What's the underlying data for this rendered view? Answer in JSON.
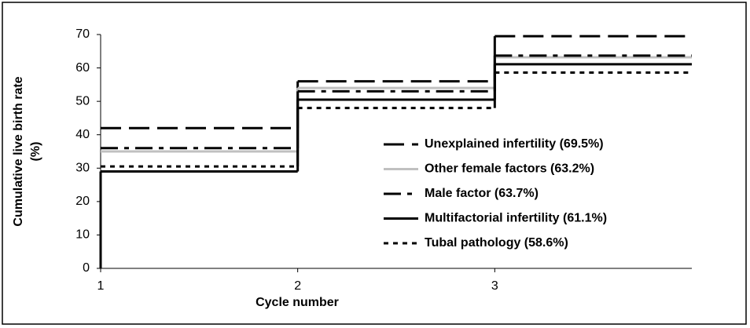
{
  "chart_data": {
    "type": "step",
    "y_label": [
      "Cumulative live birth rate",
      "(%)"
    ],
    "x_label": "Cycle number",
    "x": [
      1,
      2,
      3
    ],
    "xlim": [
      1,
      4
    ],
    "xticks": [
      1,
      2,
      3
    ],
    "ylim": [
      0,
      70
    ],
    "yticks": [
      0,
      10,
      20,
      30,
      40,
      50,
      60,
      70
    ],
    "series": [
      {
        "name": "Unexplained infertility (69.5%)",
        "color": "#000000",
        "dash": "26,10",
        "values": [
          42,
          56,
          69.5
        ]
      },
      {
        "name": "Other female factors (63.2%)",
        "color": "#c0c0c0",
        "dash": "none",
        "values": [
          35,
          54,
          63.2
        ]
      },
      {
        "name": "Male factor (63.7%)",
        "color": "#000000",
        "dash": "22,8,6,8",
        "values": [
          36,
          53,
          63.7
        ]
      },
      {
        "name": "Multifactorial infertility (61.1%)",
        "color": "#000000",
        "dash": "none",
        "values": [
          29,
          50.5,
          61.1
        ]
      },
      {
        "name": "Tubal pathology (58.6%)",
        "color": "#000000",
        "dash": "6,6",
        "values": [
          30.5,
          48,
          58.6
        ]
      }
    ]
  }
}
